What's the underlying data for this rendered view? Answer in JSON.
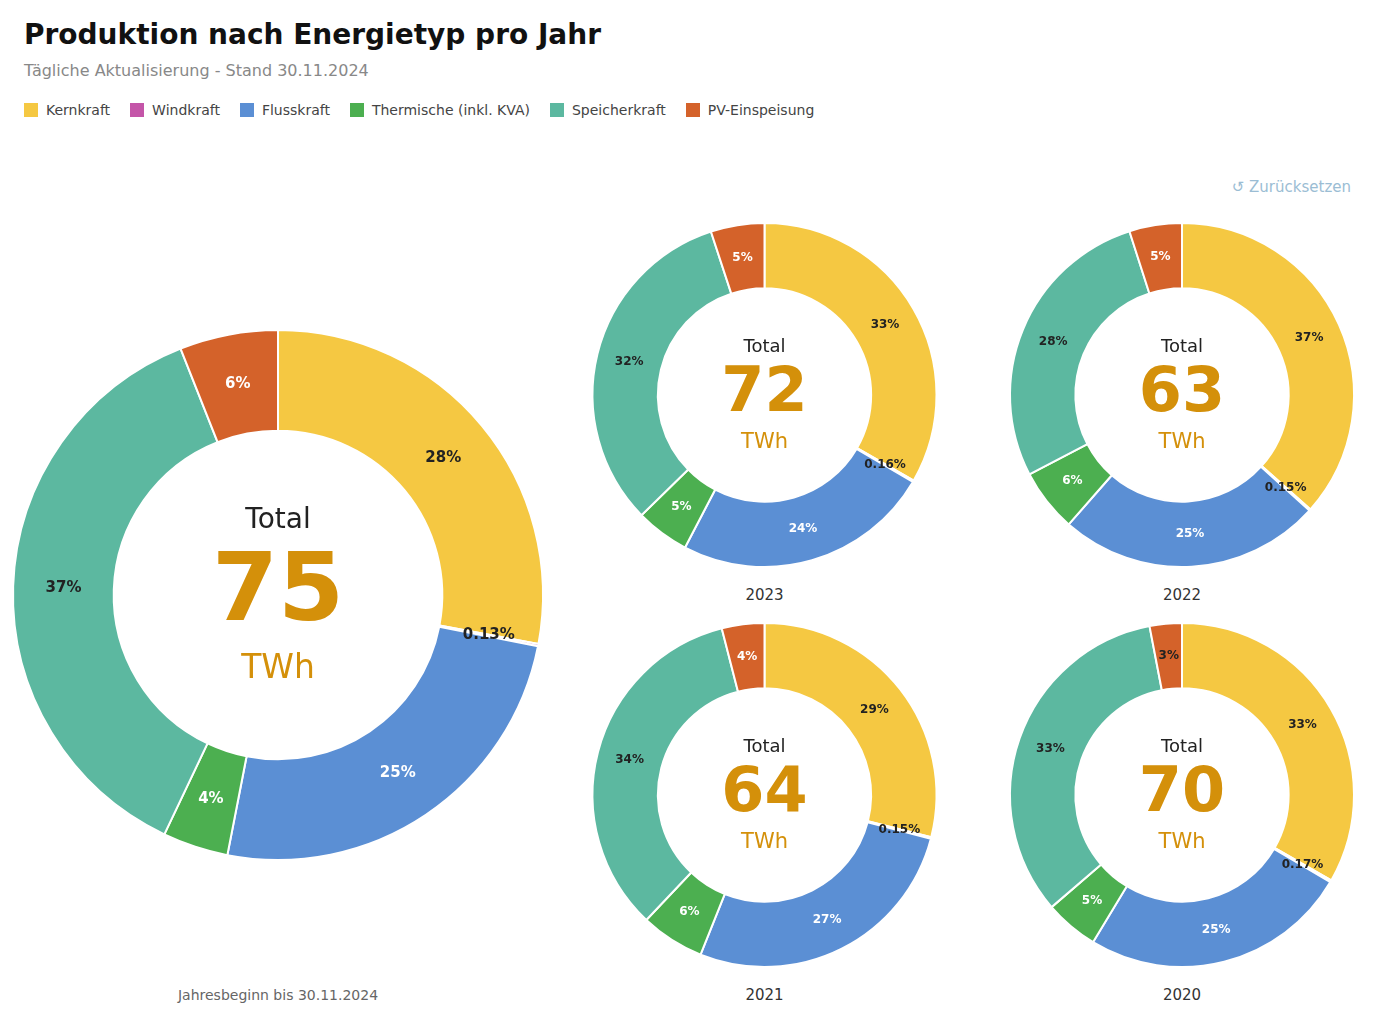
{
  "title": "Produktion nach Energietyp pro Jahr",
  "subtitle": "Tägliche Aktualisierung - Stand 30.11.2024",
  "annotations": [
    "↺",
    "Zurücksetzen"
  ],
  "legend": "top",
  "chart_data": [
    {
      "type": "doughnut",
      "title": "Jahresbeginn bis 30.11.2024",
      "categories": [
        "Kernkraft",
        "Windkraft",
        "Flusskraft",
        "Thermische (inkl. KVA)",
        "Speicherkraft",
        "PV-Einspeisung"
      ],
      "values": [
        28,
        0.13,
        25,
        4,
        37,
        6
      ],
      "value_labels": [
        "28%",
        "0.13%",
        "25%",
        "4%",
        "37%",
        "6%"
      ],
      "colors": [
        "#F5C842",
        "#C455A8",
        "#5B8FD4",
        "#4CAF50",
        "#5CB8A0",
        "#D4622A"
      ],
      "data_labels": true,
      "center_label": "Total",
      "total": 75,
      "total_unit": "TWh"
    },
    {
      "type": "doughnut",
      "title": "2023",
      "categories": [
        "Kernkraft",
        "Windkraft",
        "Flusskraft",
        "Thermische (inkl. KVA)",
        "Speicherkraft",
        "PV-Einspeisung"
      ],
      "values": [
        33,
        0.16,
        24,
        5,
        32,
        5
      ],
      "value_labels": [
        "33%",
        "0.16%",
        "24%",
        "5%",
        "32%",
        "5%"
      ],
      "colors": [
        "#F5C842",
        "#C455A8",
        "#5B8FD4",
        "#4CAF50",
        "#5CB8A0",
        "#D4622A"
      ],
      "data_labels": true,
      "center_label": "Total",
      "total": 72,
      "total_unit": "TWh"
    },
    {
      "type": "doughnut",
      "title": "2022",
      "categories": [
        "Kernkraft",
        "Windkraft",
        "Flusskraft",
        "Thermische (inkl. KVA)",
        "Speicherkraft",
        "PV-Einspeisung"
      ],
      "values": [
        37,
        0.15,
        25,
        6,
        28,
        5
      ],
      "value_labels": [
        "37%",
        "0.15%",
        "25%",
        "6%",
        "28%",
        "5%"
      ],
      "colors": [
        "#F5C842",
        "#C455A8",
        "#5B8FD4",
        "#4CAF50",
        "#5CB8A0",
        "#D4622A"
      ],
      "data_labels": true,
      "center_label": "Total",
      "total": 63,
      "total_unit": "TWh"
    },
    {
      "type": "doughnut",
      "title": "2021",
      "categories": [
        "Kernkraft",
        "Windkraft",
        "Flusskraft",
        "Thermische (inkl. KVA)",
        "Speicherkraft",
        "PV-Einspeisung"
      ],
      "values": [
        29,
        0.15,
        27,
        6,
        34,
        4
      ],
      "value_labels": [
        "29%",
        "0.15%",
        "27%",
        "6%",
        "34%",
        "4%"
      ],
      "colors": [
        "#F5C842",
        "#C455A8",
        "#5B8FD4",
        "#4CAF50",
        "#5CB8A0",
        "#D4622A"
      ],
      "data_labels": true,
      "center_label": "Total",
      "total": 64,
      "total_unit": "TWh"
    },
    {
      "type": "doughnut",
      "title": "2020",
      "categories": [
        "Kernkraft",
        "Windkraft",
        "Flusskraft",
        "Thermische (inkl. KVA)",
        "Speicherkraft",
        "PV-Einspeisung"
      ],
      "values": [
        33,
        0.17,
        25,
        5,
        33,
        3
      ],
      "value_labels": [
        "33%",
        "0.17%",
        "25%",
        "5%",
        "33%",
        "3%"
      ],
      "colors": [
        "#F5C842",
        "#C455A8",
        "#5B8FD4",
        "#4CAF50",
        "#5CB8A0",
        "#D4622A"
      ],
      "data_labels": true,
      "center_label": "Total",
      "total": 70,
      "total_unit": "TWh"
    }
  ]
}
